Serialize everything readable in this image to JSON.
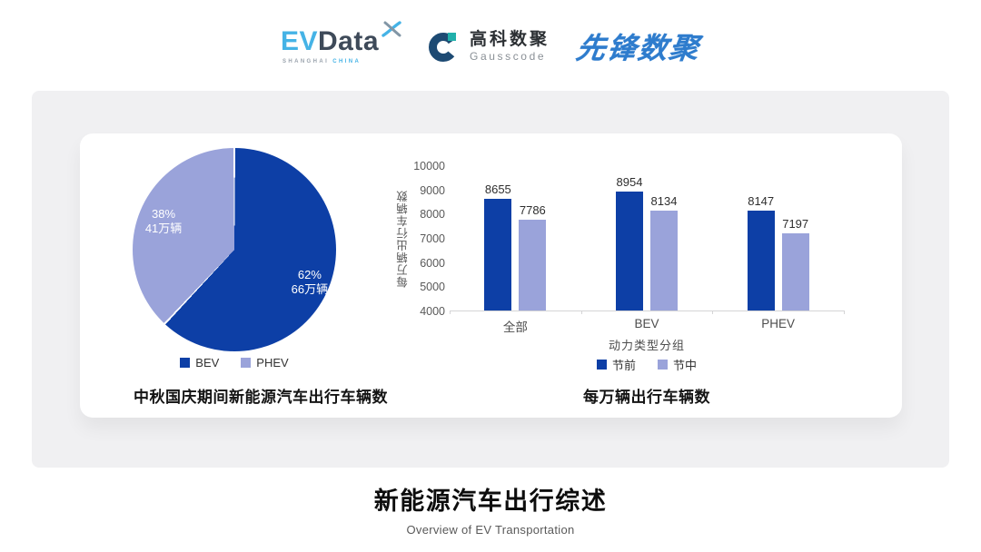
{
  "header": {
    "evdata": {
      "ev": "EV",
      "data": "Data",
      "sub_left": "SHANGHAI",
      "sub_right": "CHINA"
    },
    "gausscode": {
      "cn": "高科数聚",
      "en": "Gausscode"
    },
    "pioneer": {
      "text": "先锋数聚"
    }
  },
  "footer": {
    "title": "新能源汽车出行综述",
    "subtitle": "Overview of EV Transportation"
  },
  "colors": {
    "dark_blue": "#0d3fa6",
    "periwinkle": "#9aa3da",
    "evdata_blue": "#45b3e6",
    "evdata_slate": "#3e4a59",
    "gausscode_navy": "#1d4a73",
    "gausscode_teal": "#21b0ab",
    "pioneer_blue": "#2e7ccd",
    "panel_gray": "#f0f0f2"
  },
  "chart_data": [
    {
      "type": "pie",
      "title": "中秋国庆期间新能源汽车出行车辆数",
      "start_angle_deg": 0,
      "direction": "clockwise",
      "slices": [
        {
          "label": "BEV",
          "percent": 62,
          "value_label": "62%",
          "amount_label": "66万辆",
          "color": "#0d3fa6"
        },
        {
          "label": "PHEV",
          "percent": 38,
          "value_label": "38%",
          "amount_label": "41万辆",
          "color": "#9aa3da"
        }
      ],
      "legend_position": "bottom"
    },
    {
      "type": "bar",
      "title": "每万辆出行车辆数",
      "categories": [
        "全部",
        "BEV",
        "PHEV"
      ],
      "series": [
        {
          "name": "节前",
          "color": "#0d3fa6",
          "values": [
            8655,
            8954,
            8147
          ]
        },
        {
          "name": "节中",
          "color": "#9aa3da",
          "values": [
            7786,
            8134,
            7197
          ]
        }
      ],
      "xlabel": "动力类型分组",
      "ylabel": "每万辆出行车辆数",
      "ylim": [
        4000,
        10000
      ],
      "yticks": [
        10000,
        9000,
        8000,
        7000,
        6000,
        5000,
        4000
      ],
      "grid": false,
      "legend_position": "bottom"
    }
  ]
}
